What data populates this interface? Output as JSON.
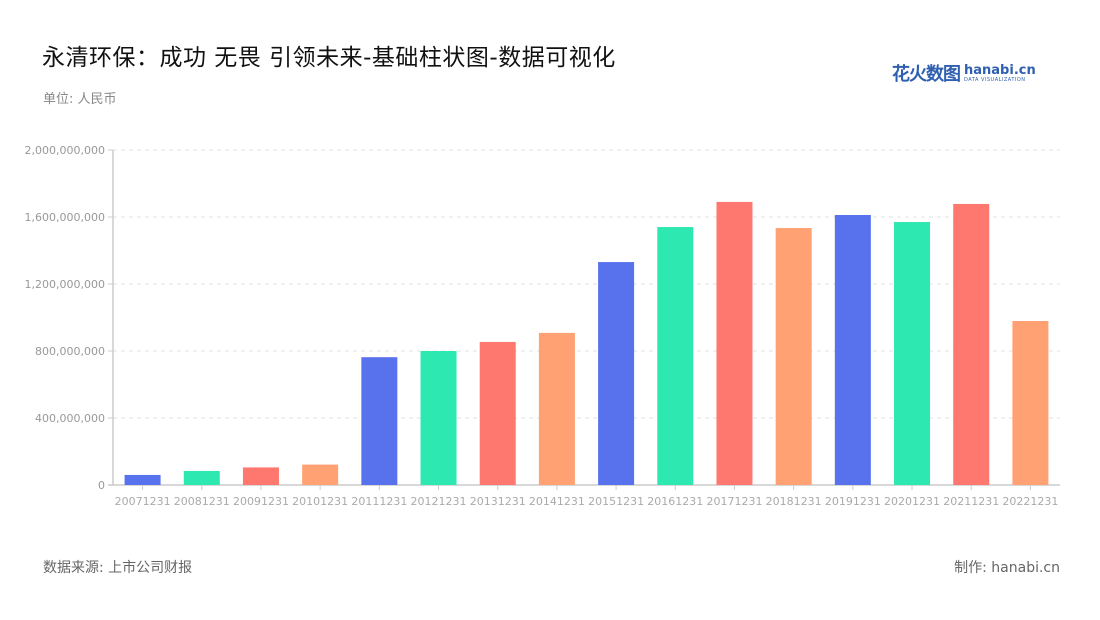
{
  "header": {
    "title": "永清环保：成功 无畏 引领未来-基础柱状图-数据可视化",
    "unit": "单位: 人民币",
    "logo_cn": "花火数图",
    "logo_en": "hanabi.cn",
    "logo_sub": "DATA VISUALIZATION"
  },
  "footer": {
    "source": "数据来源: 上市公司财报",
    "maker": "制作: hanabi.cn"
  },
  "colors": [
    "#5872ED",
    "#2DE8B1",
    "#FF7870",
    "#FFA172"
  ],
  "chart_data": {
    "type": "bar",
    "title": "永清环保：成功 无畏 引领未来-基础柱状图-数据可视化",
    "xlabel": "",
    "ylabel": "单位: 人民币",
    "ylim": [
      0,
      2000000000
    ],
    "yticks": [
      0,
      400000000,
      800000000,
      1200000000,
      1600000000,
      2000000000
    ],
    "ytick_labels": [
      "0",
      "400,000,000",
      "800,000,000",
      "1,200,000,000",
      "1,600,000,000",
      "2,000,000,000"
    ],
    "grid": "horizontal-dashed",
    "legend": "none",
    "categories": [
      "20071231",
      "20081231",
      "20091231",
      "20101231",
      "20111231",
      "20121231",
      "20131231",
      "20141231",
      "20151231",
      "20161231",
      "20171231",
      "20181231",
      "20191231",
      "20201231",
      "20211231",
      "20221231"
    ],
    "values": [
      60000000,
      84000000,
      105000000,
      122000000,
      763000000,
      800000000,
      854000000,
      908000000,
      1331000000,
      1540000000,
      1690000000,
      1534000000,
      1612000000,
      1570000000,
      1678000000,
      979000000
    ]
  }
}
